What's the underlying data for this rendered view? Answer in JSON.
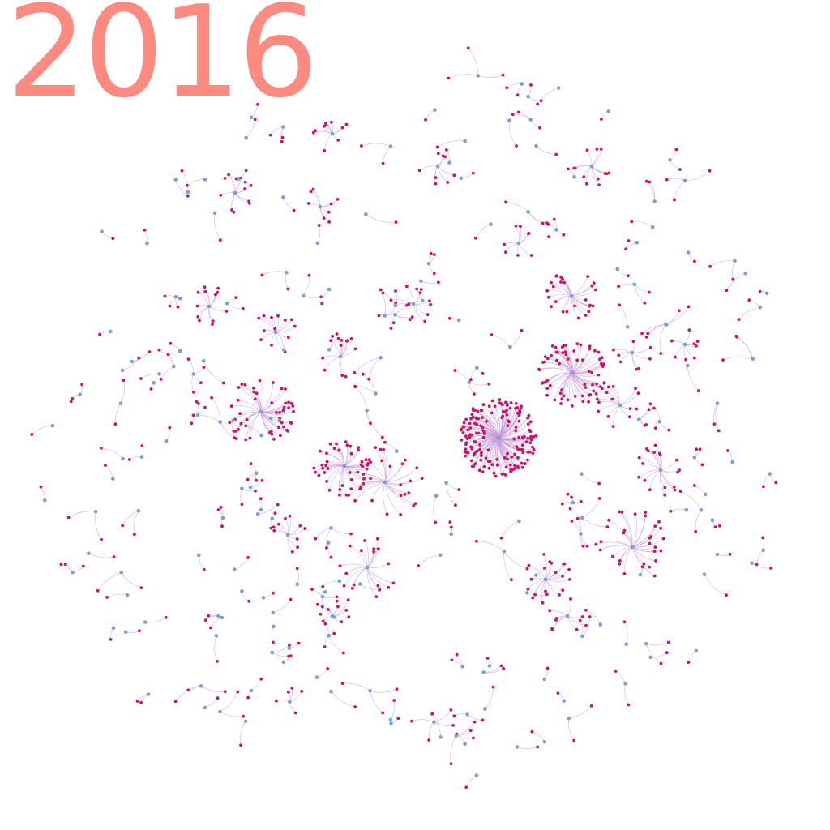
{
  "year_label": "2016",
  "colors": {
    "year_label": "#ff8a80",
    "hub_node": "#7b9fd8",
    "leaf_node": "#d0106a",
    "edge": "#c89ad8"
  }
}
